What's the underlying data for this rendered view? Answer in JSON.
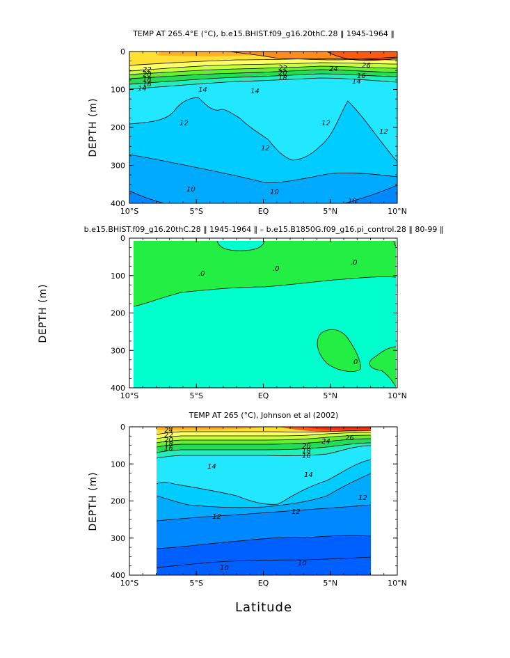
{
  "figure": {
    "x_title": "Latitude"
  },
  "chart_data": [
    {
      "type": "heatmap",
      "title": "TEMP AT 265.4°E (°C), b.e15.BHIST.f09_g16.20thC.28 ‖ 1945-1964 ‖",
      "ylabel": "DEPTH (m)",
      "xlabel": "",
      "xlim": [
        -10,
        10
      ],
      "ylim": [
        400,
        0
      ],
      "x_ticks": [
        "10°S",
        "5°S",
        "EQ",
        "5°N",
        "10°N"
      ],
      "y_ticks": [
        "0",
        "100",
        "200",
        "300",
        "400"
      ],
      "contour_labels": [
        "22",
        "20",
        "18",
        "16",
        "14",
        "14",
        "14",
        "12",
        "12",
        "12",
        "12",
        "10",
        "10",
        "10",
        "24",
        "26",
        "22",
        "20",
        "18",
        "16",
        "14"
      ],
      "isotherms": [
        {
          "level": 24,
          "depth": [
            [
              -10,
              10
            ],
            [
              -7,
              10
            ],
            [
              -5,
              12
            ],
            [
              0,
              20
            ],
            [
              3,
              28
            ],
            [
              6,
              30
            ],
            [
              8,
              22
            ],
            [
              10,
              18
            ]
          ]
        },
        {
          "level": 22,
          "depth": [
            [
              -10,
              50
            ],
            [
              -7,
              45
            ],
            [
              -5,
              42
            ],
            [
              0,
              40
            ],
            [
              3,
              38
            ],
            [
              6,
              36
            ],
            [
              8,
              32
            ],
            [
              10,
              30
            ]
          ]
        },
        {
          "level": 18,
          "depth": [
            [
              -10,
              75
            ],
            [
              -7,
              65
            ],
            [
              -5,
              58
            ],
            [
              0,
              52
            ],
            [
              3,
              50
            ],
            [
              6,
              48
            ],
            [
              8,
              45
            ],
            [
              10,
              42
            ]
          ]
        },
        {
          "level": 14,
          "depth": [
            [
              -10,
              100
            ],
            [
              -7,
              88
            ],
            [
              -5,
              82
            ],
            [
              0,
              75
            ],
            [
              3,
              68
            ],
            [
              6,
              62
            ],
            [
              8,
              58
            ],
            [
              10,
              55
            ]
          ]
        },
        {
          "level": 12,
          "depth": [
            [
              -10,
              180
            ],
            [
              -8,
              178
            ],
            [
              -6,
              170
            ],
            [
              -4,
              130
            ],
            [
              -2.5,
              150
            ],
            [
              -1,
              170
            ],
            [
              0.5,
              195
            ],
            [
              2,
              150
            ],
            [
              4,
              105
            ],
            [
              6,
              85
            ],
            [
              7.5,
              120
            ],
            [
              9,
              165
            ],
            [
              10,
              190
            ]
          ]
        },
        {
          "level": 11,
          "depth": [
            [
              -10,
              215
            ],
            [
              -7,
              225
            ],
            [
              -5,
              240
            ],
            [
              -3,
              255
            ],
            [
              0,
              270
            ],
            [
              1.5,
              275
            ],
            [
              3,
              240
            ],
            [
              5,
              220
            ],
            [
              7,
              215
            ],
            [
              10,
              225
            ]
          ]
        },
        {
          "level": 10,
          "depth": [
            [
              -10,
              270
            ],
            [
              -8,
              300
            ],
            [
              -6,
              345
            ],
            [
              -4,
              370
            ],
            [
              -2,
              365
            ],
            [
              0,
              370
            ],
            [
              2,
              372
            ],
            [
              4,
              385
            ],
            [
              6,
              392
            ],
            [
              8,
              385
            ],
            [
              10,
              375
            ]
          ]
        }
      ]
    },
    {
      "type": "heatmap",
      "title": "b.e15.BHIST.f09_g16.20thC.28 ‖ 1945-1964 ‖ – b.e15.B1850G.f09_g16.pi_control.28 ‖ 80-99 ‖",
      "ylabel": "DEPTH (m)",
      "xlabel": "",
      "xlim": [
        -10,
        10
      ],
      "ylim": [
        400,
        0
      ],
      "x_ticks": [
        "10°S",
        "5°S",
        "EQ",
        "5°N",
        "10°N"
      ],
      "y_ticks": [
        "0",
        "100",
        "200",
        "300",
        "400"
      ],
      "contour_labels": [
        ".0",
        ".0",
        ".0",
        "0"
      ],
      "zero_contour_depth": [
        [
          -10,
          120
        ],
        [
          -8,
          110
        ],
        [
          -5,
          95
        ],
        [
          -2,
          90
        ],
        [
          0,
          80
        ],
        [
          2,
          75
        ],
        [
          5,
          70
        ],
        [
          7,
          62
        ],
        [
          10,
          55
        ]
      ]
    },
    {
      "type": "heatmap",
      "title": "TEMP AT 265 (°C), Johnson et al (2002)",
      "ylabel": "DEPTH (m)",
      "xlabel": "Latitude",
      "xlim": [
        -10,
        10
      ],
      "ylim": [
        400,
        0
      ],
      "data_xlim": [
        -8,
        8
      ],
      "x_ticks": [
        "10°S",
        "5°S",
        "EQ",
        "5°N",
        "10°N"
      ],
      "y_ticks": [
        "0",
        "100",
        "200",
        "300",
        "400"
      ],
      "contour_labels": [
        "24",
        "22",
        "20",
        "18",
        "16",
        "14",
        "14",
        "12",
        "12",
        "12",
        "10",
        "10",
        "26",
        "24",
        "20",
        "18",
        "16"
      ],
      "isotherms": [
        {
          "level": 22,
          "depth": [
            [
              -8,
              25
            ],
            [
              -5,
              28
            ],
            [
              -2,
              30
            ],
            [
              0,
              32
            ],
            [
              3,
              30
            ],
            [
              5,
              25
            ],
            [
              7,
              22
            ],
            [
              8,
              20
            ]
          ]
        },
        {
          "level": 18,
          "depth": [
            [
              -8,
              50
            ],
            [
              -5,
              50
            ],
            [
              -2,
              52
            ],
            [
              0,
              55
            ],
            [
              3,
              50
            ],
            [
              5,
              45
            ],
            [
              7,
              40
            ],
            [
              8,
              38
            ]
          ]
        },
        {
          "level": 14,
          "depth": [
            [
              -8,
              90
            ],
            [
              -5,
              85
            ],
            [
              -2,
              82
            ],
            [
              0,
              82
            ],
            [
              2,
              85
            ],
            [
              4,
              92
            ],
            [
              5,
              90
            ],
            [
              7,
              65
            ],
            [
              8,
              60
            ]
          ]
        },
        {
          "level": 13,
          "depth": [
            [
              -8,
              150
            ],
            [
              -6,
              180
            ],
            [
              -3,
              190
            ],
            [
              0,
              230
            ],
            [
              2,
              210
            ],
            [
              4,
              180
            ],
            [
              6,
              150
            ],
            [
              8,
              135
            ]
          ]
        },
        {
          "level": 12,
          "depth": [
            [
              -8,
              240
            ],
            [
              -6,
              275
            ],
            [
              -3,
              295
            ],
            [
              0,
              290
            ],
            [
              3,
              290
            ],
            [
              5,
              285
            ],
            [
              7,
              270
            ],
            [
              8,
              270
            ]
          ]
        },
        {
          "level": 10,
          "depth": [
            [
              -8,
              390
            ],
            [
              -6,
              388
            ],
            [
              -4,
              372
            ],
            [
              -2,
              368
            ],
            [
              0,
              362
            ],
            [
              2,
              365
            ],
            [
              4,
              366
            ],
            [
              6,
              360
            ],
            [
              8,
              360
            ]
          ]
        }
      ]
    }
  ],
  "colors": {
    "warm": [
      "#ffe033",
      "#ffb028",
      "#ff8c1e",
      "#ff5a14",
      "#ee2d10"
    ],
    "mid": [
      "#ffff66",
      "#c8ff3c",
      "#66ee33",
      "#22dd55",
      "#22eebb"
    ],
    "cool": [
      "#22e8ff",
      "#00ccff",
      "#00aaff",
      "#0088ff",
      "#0060ff",
      "#0033dd"
    ],
    "diff_pos": "#22ee44",
    "diff_zero": "#00ffcc"
  }
}
